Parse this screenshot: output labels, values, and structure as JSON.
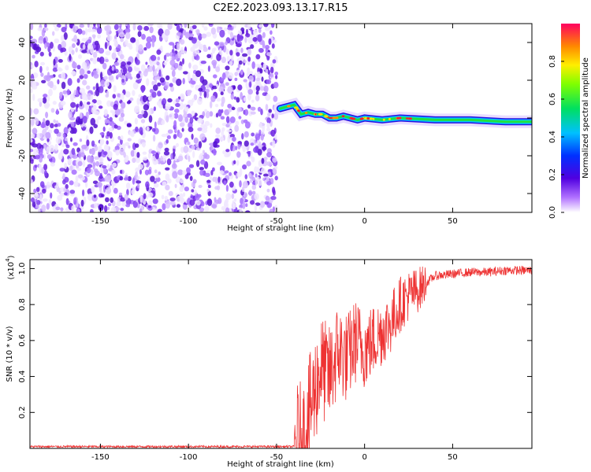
{
  "title": "C2E2.2023.093.13.17.R15",
  "chart_data": [
    {
      "type": "heatmap",
      "xlabel": "Height of straight line (km)",
      "ylabel": "Frequency (Hz)",
      "xlim": [
        -190,
        95
      ],
      "ylim": [
        -50,
        50
      ],
      "xticks": [
        -150,
        -100,
        -50,
        0,
        50
      ],
      "yticks": [
        -40,
        -20,
        0,
        20,
        40
      ],
      "noise_region_x": [
        -190,
        -50
      ],
      "signal_track": {
        "x": [
          -48,
          -44,
          -40,
          -36,
          -32,
          -28,
          -24,
          -20,
          -16,
          -12,
          -8,
          -4,
          0,
          10,
          20,
          40,
          60,
          80,
          95
        ],
        "freq": [
          5,
          6,
          7,
          2,
          3,
          2,
          2,
          0,
          0,
          1,
          0,
          -1,
          0,
          -1,
          0,
          -1,
          -1,
          -2,
          -2
        ]
      },
      "colorbar": {
        "label": "Normalized spectral amplitude",
        "ticks": [
          0.0,
          0.2,
          0.4,
          0.6,
          0.8
        ],
        "range": [
          0,
          1
        ]
      }
    },
    {
      "type": "line",
      "xlabel": "Height of straight line (km)",
      "ylabel": "SNR (10 * v/v)",
      "y_multiplier": "(x10",
      "y_multiplier_exp": "4",
      "y_multiplier_close": ")",
      "xlim": [
        -190,
        95
      ],
      "ylim": [
        0,
        1.05
      ],
      "xticks": [
        -150,
        -100,
        -50,
        0,
        50
      ],
      "yticks": [
        0.2,
        0.4,
        0.6,
        0.8,
        1.0
      ],
      "series": [
        {
          "x": [
            -190,
            -40,
            -35,
            -30,
            -25,
            -20,
            -15,
            -10,
            -5,
            0,
            5,
            10,
            15,
            20,
            25,
            30,
            35,
            40,
            50,
            60,
            70,
            80,
            95
          ],
          "values": [
            0.01,
            0.01,
            0.05,
            0.25,
            0.45,
            0.4,
            0.55,
            0.5,
            0.6,
            0.55,
            0.6,
            0.65,
            0.7,
            0.8,
            0.85,
            0.88,
            0.92,
            0.96,
            0.97,
            0.98,
            0.98,
            0.99,
            0.99
          ],
          "color": "#ee3333"
        }
      ]
    }
  ]
}
